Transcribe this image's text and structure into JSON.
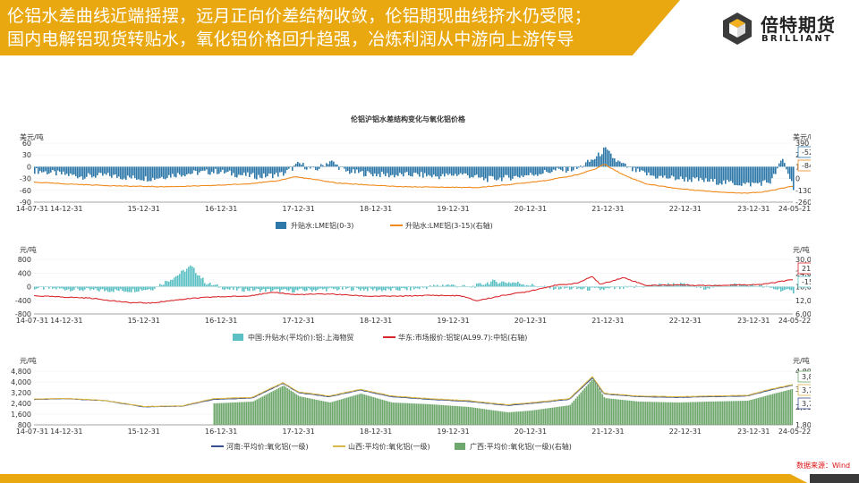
{
  "header": {
    "line1": "伦铝水差曲线近端摇摆，远月正向价差结构收敛，伦铝期现曲线挤水仍受限；",
    "line2": "国内电解铝现货转贴水，氧化铝价格回升趋强，冶炼利润从中游向上游传导"
  },
  "logo": {
    "name_cn": "倍特期货",
    "name_en": "BRILLIANT",
    "icon": "cube-logo-icon"
  },
  "source": "数据来源：Wind",
  "colors": {
    "accent": "#e9a810",
    "blue": "#2d78a8",
    "orange": "#f08a1c",
    "red": "#d9292e",
    "teal": "#5cc0c4",
    "navy": "#3a4f8c",
    "gold": "#d9b84a",
    "green": "#6fa86c"
  },
  "chart_data": [
    {
      "type": "bar+line",
      "title": "伦铝沪铝水差结构变化与氧化铝价格",
      "left_unit": "美元/吨",
      "right_unit": "美元/吨",
      "left_ticks": [
        "60",
        "30",
        "0",
        "-30",
        "-60",
        "-90"
      ],
      "right_ticks": [
        "390",
        "260",
        "130",
        "0",
        "-130",
        "-260"
      ],
      "x_ticks": [
        "14-07-31",
        "14-12-31",
        "15-12-31",
        "16-12-31",
        "17-12-31",
        "18-12-31",
        "19-12-31",
        "20-12-31",
        "21-12-31",
        "22-12-31",
        "23-12-31",
        "24-05-21"
      ],
      "ylim_left": [
        -90,
        60
      ],
      "ylim_right": [
        -260,
        390
      ],
      "x_range": [
        2014.58,
        2024.39
      ],
      "series": [
        {
          "name": "升贴水:LME铝(0-3)",
          "axis": "left",
          "kind": "bar",
          "points": [
            [
              2014.58,
              -10
            ],
            [
              2014.9,
              -18
            ],
            [
              2015.2,
              -25
            ],
            [
              2015.5,
              -22
            ],
            [
              2015.8,
              -28
            ],
            [
              2016.1,
              -30
            ],
            [
              2016.4,
              -20
            ],
            [
              2016.7,
              -15
            ],
            [
              2016.95,
              -12
            ],
            [
              2017.2,
              -20
            ],
            [
              2017.5,
              -25
            ],
            [
              2017.8,
              -18
            ],
            [
              2018.0,
              8
            ],
            [
              2018.2,
              -10
            ],
            [
              2018.4,
              15
            ],
            [
              2018.6,
              -12
            ],
            [
              2018.9,
              -18
            ],
            [
              2019.2,
              -22
            ],
            [
              2019.5,
              -20
            ],
            [
              2019.8,
              -25
            ],
            [
              2020.1,
              -18
            ],
            [
              2020.4,
              -32
            ],
            [
              2020.7,
              -28
            ],
            [
              2021.0,
              -20
            ],
            [
              2021.3,
              -10
            ],
            [
              2021.6,
              -5
            ],
            [
              2021.85,
              25
            ],
            [
              2021.95,
              45
            ],
            [
              2022.1,
              15
            ],
            [
              2022.3,
              -8
            ],
            [
              2022.6,
              -25
            ],
            [
              2022.9,
              -30
            ],
            [
              2023.2,
              -35
            ],
            [
              2023.5,
              -40
            ],
            [
              2023.8,
              -45
            ],
            [
              2024.1,
              -38
            ],
            [
              2024.25,
              20
            ],
            [
              2024.39,
              -52
            ]
          ]
        },
        {
          "name": "升贴水:LME铝(3-15)(右轴)",
          "axis": "right",
          "kind": "line",
          "points": [
            [
              2014.58,
              -40
            ],
            [
              2014.9,
              -55
            ],
            [
              2015.3,
              -70
            ],
            [
              2015.8,
              -85
            ],
            [
              2016.3,
              -90
            ],
            [
              2016.8,
              -80
            ],
            [
              2017.3,
              -60
            ],
            [
              2017.7,
              -30
            ],
            [
              2017.95,
              20
            ],
            [
              2018.2,
              -10
            ],
            [
              2018.5,
              -50
            ],
            [
              2018.9,
              -70
            ],
            [
              2019.3,
              -90
            ],
            [
              2019.8,
              -95
            ],
            [
              2020.3,
              -100
            ],
            [
              2020.8,
              -60
            ],
            [
              2021.2,
              -20
            ],
            [
              2021.6,
              40
            ],
            [
              2021.85,
              110
            ],
            [
              2021.95,
              160
            ],
            [
              2022.2,
              40
            ],
            [
              2022.5,
              -60
            ],
            [
              2022.9,
              -110
            ],
            [
              2023.3,
              -140
            ],
            [
              2023.7,
              -160
            ],
            [
              2024.0,
              -150
            ],
            [
              2024.39,
              -85
            ]
          ]
        }
      ],
      "end_labels": [
        "-52.38",
        "-84.75"
      ]
    },
    {
      "type": "bar+line",
      "title": "",
      "left_unit": "元/吨",
      "right_unit": "元/吨",
      "left_ticks": [
        "800",
        "400",
        "0",
        "-400",
        "-800"
      ],
      "right_ticks": [
        "30,000",
        "24,000",
        "18,000",
        "12,000",
        "6,000"
      ],
      "x_ticks": [
        "14-07-31",
        "14-12-31",
        "15-12-31",
        "16-12-31",
        "17-12-31",
        "18-12-31",
        "19-12-31",
        "20-12-31",
        "21-12-31",
        "22-12-31",
        "23-12-31",
        "24-05-22"
      ],
      "ylim_left": [
        -800,
        800
      ],
      "ylim_right": [
        6000,
        30000
      ],
      "x_range": [
        2014.58,
        2024.39
      ],
      "series": [
        {
          "name": "中国:升贴水(平均价):铝:上海物贸",
          "axis": "left",
          "kind": "bar",
          "points": [
            [
              2014.58,
              -40
            ],
            [
              2014.9,
              -60
            ],
            [
              2015.3,
              -100
            ],
            [
              2015.8,
              -120
            ],
            [
              2016.1,
              -60
            ],
            [
              2016.4,
              300
            ],
            [
              2016.6,
              600
            ],
            [
              2016.8,
              100
            ],
            [
              2017.1,
              -80
            ],
            [
              2017.5,
              -100
            ],
            [
              2017.9,
              -120
            ],
            [
              2018.3,
              -80
            ],
            [
              2018.7,
              -60
            ],
            [
              2019.1,
              -100
            ],
            [
              2019.5,
              -60
            ],
            [
              2019.9,
              60
            ],
            [
              2020.2,
              -20
            ],
            [
              2020.5,
              150
            ],
            [
              2020.8,
              120
            ],
            [
              2021.2,
              -30
            ],
            [
              2021.6,
              -60
            ],
            [
              2021.9,
              -80
            ],
            [
              2022.2,
              -40
            ],
            [
              2022.6,
              40
            ],
            [
              2022.9,
              80
            ],
            [
              2023.2,
              -40
            ],
            [
              2023.6,
              60
            ],
            [
              2023.9,
              30
            ],
            [
              2024.2,
              -80
            ],
            [
              2024.39,
              -150
            ]
          ]
        },
        {
          "name": "华东:市场报价:铝锭(AL99.7):中铝(右轴)",
          "axis": "right",
          "kind": "line",
          "points": [
            [
              2014.58,
              14000
            ],
            [
              2014.9,
              13500
            ],
            [
              2015.3,
              13000
            ],
            [
              2015.8,
              11000
            ],
            [
              2016.1,
              10800
            ],
            [
              2016.5,
              12500
            ],
            [
              2016.9,
              13500
            ],
            [
              2017.3,
              13800
            ],
            [
              2017.7,
              15500
            ],
            [
              2017.95,
              14500
            ],
            [
              2018.4,
              14800
            ],
            [
              2018.9,
              13800
            ],
            [
              2019.3,
              13800
            ],
            [
              2019.7,
              14200
            ],
            [
              2020.1,
              14000
            ],
            [
              2020.3,
              11800
            ],
            [
              2020.7,
              14500
            ],
            [
              2020.95,
              15800
            ],
            [
              2021.3,
              18500
            ],
            [
              2021.6,
              19500
            ],
            [
              2021.8,
              22500
            ],
            [
              2021.9,
              19000
            ],
            [
              2022.2,
              22000
            ],
            [
              2022.5,
              18500
            ],
            [
              2022.9,
              18800
            ],
            [
              2023.3,
              18500
            ],
            [
              2023.7,
              18800
            ],
            [
              2024.0,
              19000
            ],
            [
              2024.39,
              21090
            ]
          ]
        }
      ],
      "end_labels": [
        "21,090.00",
        "-150.00"
      ]
    },
    {
      "type": "bar+line",
      "title": "",
      "left_unit": "元/吨",
      "right_unit": "元/吨",
      "left_ticks": [
        "4,800",
        "4,000",
        "3,200",
        "2,400",
        "1,600",
        "800"
      ],
      "right_ticks": [
        "4,800",
        "3,800",
        "2,800",
        "1,800"
      ],
      "x_ticks": [
        "14-07-31",
        "14-12-31",
        "15-12-31",
        "16-12-31",
        "17-12-31",
        "18-12-31",
        "19-12-31",
        "20-12-31",
        "21-12-31",
        "22-12-31",
        "23-12-31",
        "24-05-22"
      ],
      "ylim_left": [
        800,
        4800
      ],
      "ylim_right": [
        1800,
        4800
      ],
      "x_range": [
        2014.58,
        2024.39
      ],
      "series": [
        {
          "name": "河南:平均价:氧化铝(一级)",
          "axis": "left",
          "kind": "line",
          "points": [
            [
              2014.58,
              2700
            ],
            [
              2015.0,
              2750
            ],
            [
              2015.5,
              2600
            ],
            [
              2016.0,
              2150
            ],
            [
              2016.5,
              2200
            ],
            [
              2016.9,
              2700
            ],
            [
              2017.4,
              2800
            ],
            [
              2017.8,
              3900
            ],
            [
              2018.0,
              3200
            ],
            [
              2018.4,
              2900
            ],
            [
              2018.8,
              3400
            ],
            [
              2019.2,
              2900
            ],
            [
              2019.7,
              2700
            ],
            [
              2020.2,
              2550
            ],
            [
              2020.7,
              2250
            ],
            [
              2021.0,
              2400
            ],
            [
              2021.5,
              2700
            ],
            [
              2021.8,
              4300
            ],
            [
              2021.95,
              3100
            ],
            [
              2022.4,
              2900
            ],
            [
              2022.9,
              2850
            ],
            [
              2023.3,
              2900
            ],
            [
              2023.8,
              2950
            ],
            [
              2024.1,
              3400
            ],
            [
              2024.39,
              3760
            ]
          ]
        },
        {
          "name": "山西:平均价:氧化铝(一级)",
          "axis": "left",
          "kind": "line",
          "points": [
            [
              2014.58,
              2720
            ],
            [
              2015.0,
              2770
            ],
            [
              2015.5,
              2620
            ],
            [
              2016.0,
              2170
            ],
            [
              2016.5,
              2220
            ],
            [
              2016.9,
              2750
            ],
            [
              2017.4,
              2850
            ],
            [
              2017.8,
              3950
            ],
            [
              2018.0,
              3250
            ],
            [
              2018.4,
              2950
            ],
            [
              2018.8,
              3450
            ],
            [
              2019.2,
              2950
            ],
            [
              2019.7,
              2750
            ],
            [
              2020.2,
              2600
            ],
            [
              2020.7,
              2300
            ],
            [
              2021.0,
              2450
            ],
            [
              2021.5,
              2750
            ],
            [
              2021.8,
              4400
            ],
            [
              2021.95,
              3150
            ],
            [
              2022.4,
              2950
            ],
            [
              2022.9,
              2900
            ],
            [
              2023.3,
              2950
            ],
            [
              2023.8,
              3000
            ],
            [
              2024.1,
              3450
            ],
            [
              2024.39,
              3795
            ]
          ]
        },
        {
          "name": "广西:平均价:氧化铝(一级)(右轴)",
          "axis": "right",
          "kind": "bar",
          "points": [
            [
              2016.9,
              3000
            ],
            [
              2017.4,
              3100
            ],
            [
              2017.8,
              4000
            ],
            [
              2018.0,
              3400
            ],
            [
              2018.4,
              3050
            ],
            [
              2018.8,
              3550
            ],
            [
              2019.2,
              3050
            ],
            [
              2019.7,
              2950
            ],
            [
              2020.2,
              2800
            ],
            [
              2020.7,
              2500
            ],
            [
              2021.0,
              2600
            ],
            [
              2021.5,
              2900
            ],
            [
              2021.8,
              4400
            ],
            [
              2021.95,
              3300
            ],
            [
              2022.4,
              3100
            ],
            [
              2022.9,
              3050
            ],
            [
              2023.3,
              3100
            ],
            [
              2023.8,
              3150
            ],
            [
              2024.1,
              3500
            ],
            [
              2024.39,
              3820
            ]
          ]
        }
      ],
      "end_labels": [
        "3,820.00",
        "3,795.00",
        "3,760.00"
      ]
    }
  ]
}
